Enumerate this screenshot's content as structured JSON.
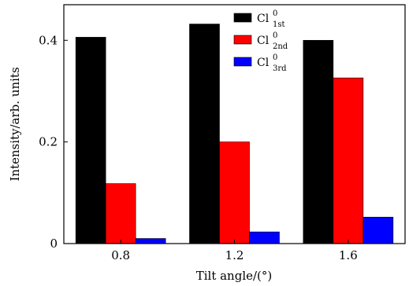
{
  "chart_data": {
    "type": "bar",
    "categories": [
      "0.8",
      "1.2",
      "1.6"
    ],
    "series": [
      {
        "base": "Cl",
        "sup": "0",
        "sub": "1st",
        "color": "#000000",
        "values": [
          0.406,
          0.432,
          0.4
        ]
      },
      {
        "base": "Cl",
        "sup": "0",
        "sub": "2nd",
        "color": "#ff0000",
        "values": [
          0.118,
          0.2,
          0.326
        ]
      },
      {
        "base": "Cl",
        "sup": "0",
        "sub": "3rd",
        "color": "#0000ff",
        "values": [
          0.01,
          0.023,
          0.052
        ]
      }
    ],
    "xlabel": "Tilt angle/(°)",
    "ylabel": "Intensity/arb. units",
    "ylim": [
      0,
      0.47
    ],
    "yticks": [
      "0",
      "0.2",
      "0.4"
    ],
    "legend_position": "top-right",
    "grid": false
  }
}
